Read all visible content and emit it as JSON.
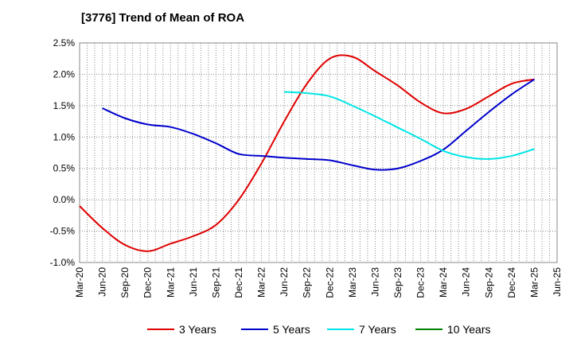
{
  "chart_data": {
    "type": "line",
    "title": "[3776]  Trend of Mean of ROA",
    "xlabel": "",
    "ylabel": "",
    "categories": [
      "Mar-20",
      "Jun-20",
      "Sep-20",
      "Dec-20",
      "Mar-21",
      "Jun-21",
      "Sep-21",
      "Dec-21",
      "Mar-22",
      "Jun-22",
      "Sep-22",
      "Dec-22",
      "Mar-23",
      "Jun-23",
      "Sep-23",
      "Dec-23",
      "Mar-24",
      "Jun-24",
      "Sep-24",
      "Dec-24",
      "Mar-25",
      "Jun-25"
    ],
    "y_ticks": [
      "2.5%",
      "2.0%",
      "1.5%",
      "1.0%",
      "0.5%",
      "0.0%",
      "-0.5%",
      "-1.0%"
    ],
    "ylim": [
      -1.0,
      2.5
    ],
    "grid": true,
    "legend_position": "bottom",
    "series": [
      {
        "name": "3 Years",
        "color": "#e00000",
        "values": [
          -0.1,
          -0.45,
          -0.72,
          -0.82,
          -0.7,
          -0.58,
          -0.4,
          0.0,
          0.58,
          1.25,
          1.85,
          2.25,
          2.28,
          2.05,
          1.82,
          1.55,
          1.38,
          1.45,
          1.65,
          1.85,
          1.92,
          null
        ]
      },
      {
        "name": "5 Years",
        "color": "#0000cc",
        "values": [
          null,
          1.46,
          1.3,
          1.2,
          1.16,
          1.05,
          0.9,
          0.73,
          0.7,
          0.67,
          0.65,
          0.63,
          0.55,
          0.48,
          0.5,
          0.62,
          0.8,
          1.1,
          1.4,
          1.68,
          1.92,
          null
        ]
      },
      {
        "name": "7 Years",
        "color": "#00e5e5",
        "values": [
          null,
          null,
          null,
          null,
          null,
          null,
          null,
          null,
          null,
          1.72,
          1.7,
          1.65,
          1.5,
          1.33,
          1.15,
          0.97,
          0.78,
          0.68,
          0.65,
          0.7,
          0.81,
          null
        ]
      },
      {
        "name": "10 Years",
        "color": "#008000",
        "values": [
          null,
          null,
          null,
          null,
          null,
          null,
          null,
          null,
          null,
          null,
          null,
          null,
          null,
          null,
          null,
          null,
          null,
          null,
          null,
          null,
          null,
          null
        ]
      }
    ]
  }
}
